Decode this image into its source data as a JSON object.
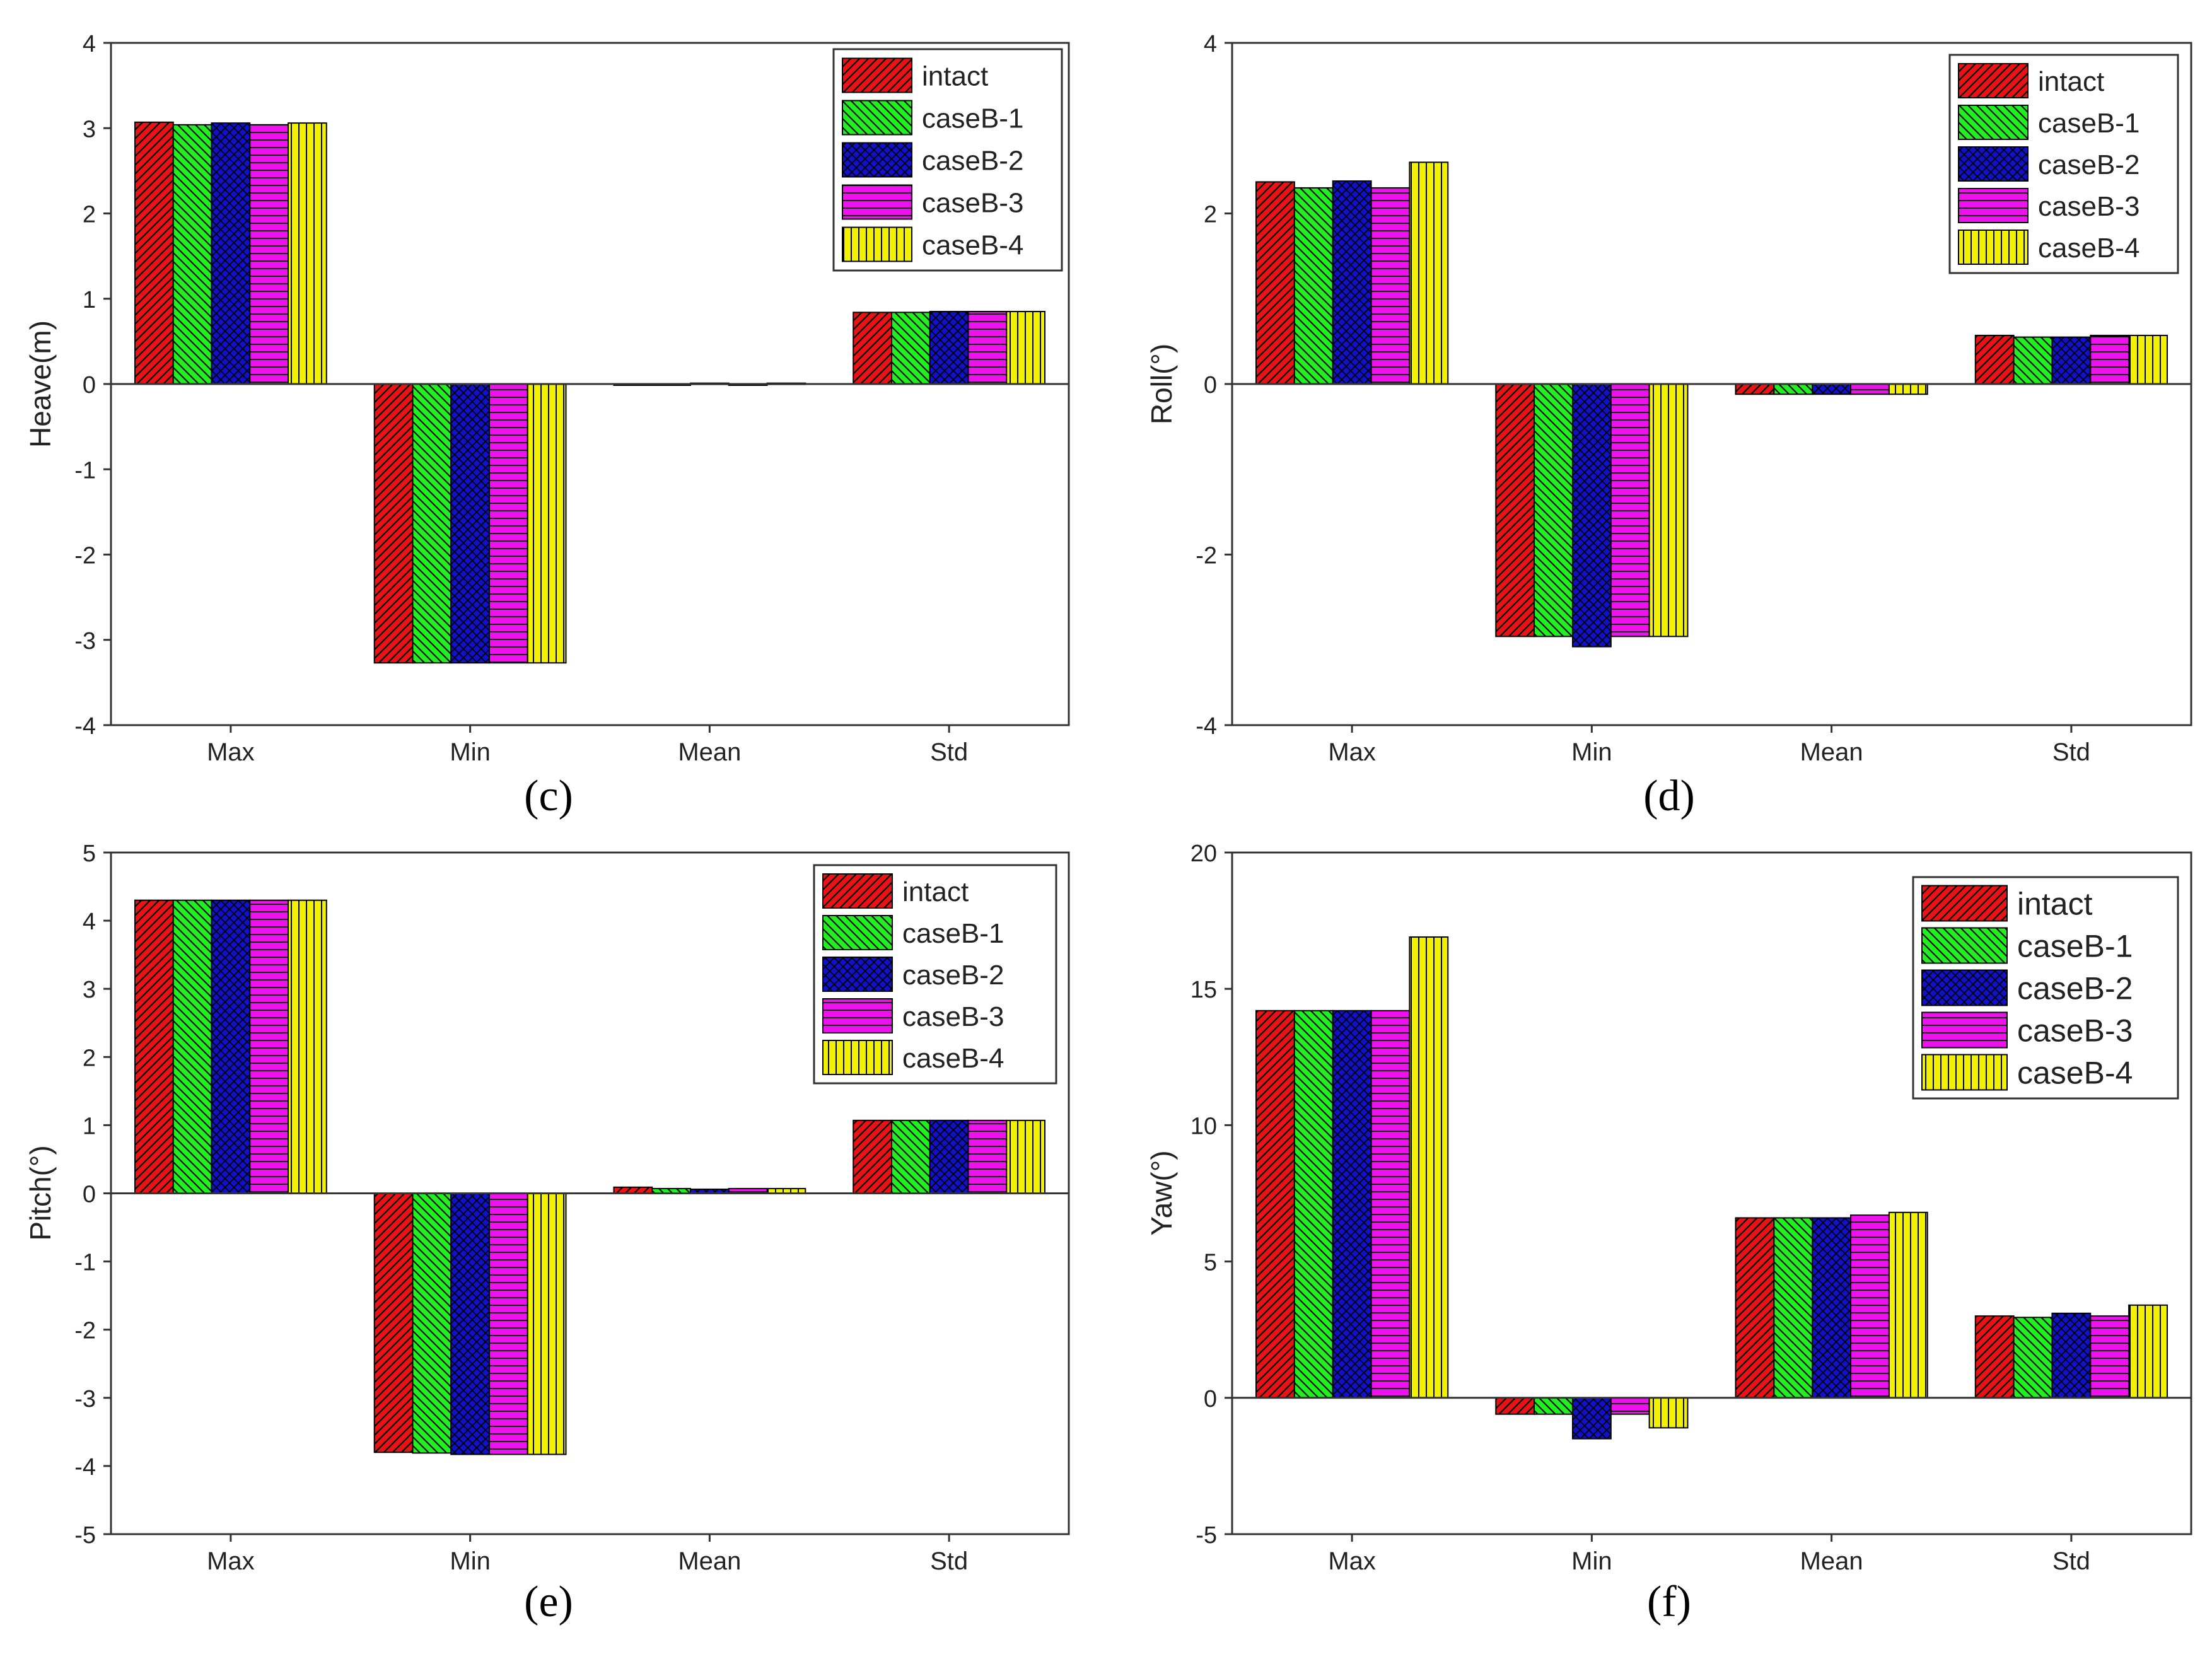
{
  "colors": {
    "intact": "#ee1111",
    "caseB-1": "#22ee22",
    "caseB-2": "#1111cc",
    "caseB-3": "#ee11ee",
    "caseB-4": "#f2f200"
  },
  "patterns": {
    "intact": "diag-right",
    "caseB-1": "diag-left",
    "caseB-2": "cross",
    "caseB-3": "horizontal",
    "caseB-4": "vertical"
  },
  "chart_data": [
    {
      "panel": "c",
      "panel_label": "(c)",
      "type": "bar",
      "title": "",
      "xlabel": "",
      "ylabel": "Heave(m)",
      "ylim": [
        -4,
        4
      ],
      "yticks": [
        -4,
        -3,
        -2,
        -1,
        0,
        1,
        2,
        3,
        4
      ],
      "ytick_labels": [
        "-4",
        "-3",
        "-2",
        "-1",
        "0",
        "1",
        "2",
        "3",
        "4"
      ],
      "categories": [
        "Max",
        "Min",
        "Mean",
        "Std"
      ],
      "legend_position": "top-right",
      "series": [
        {
          "name": "intact",
          "values": [
            3.07,
            -3.27,
            0.0,
            0.84
          ]
        },
        {
          "name": "caseB-1",
          "values": [
            3.04,
            -3.27,
            0.0,
            0.84
          ]
        },
        {
          "name": "caseB-2",
          "values": [
            3.06,
            -3.27,
            0.01,
            0.85
          ]
        },
        {
          "name": "caseB-3",
          "values": [
            3.04,
            -3.27,
            0.0,
            0.85
          ]
        },
        {
          "name": "caseB-4",
          "values": [
            3.06,
            -3.27,
            0.01,
            0.85
          ]
        }
      ]
    },
    {
      "panel": "d",
      "panel_label": "(d)",
      "type": "bar",
      "title": "",
      "xlabel": "",
      "ylabel": "Roll(°)",
      "ylim": [
        -4,
        4
      ],
      "yticks": [
        -4,
        -2,
        0,
        2,
        4
      ],
      "ytick_labels": [
        "-4",
        "-2",
        "0",
        "2",
        "4"
      ],
      "categories": [
        "Max",
        "Min",
        "Mean",
        "Std"
      ],
      "legend_position": "top-right",
      "series": [
        {
          "name": "intact",
          "values": [
            2.37,
            -2.96,
            -0.12,
            0.57
          ]
        },
        {
          "name": "caseB-1",
          "values": [
            2.3,
            -2.96,
            -0.12,
            0.55
          ]
        },
        {
          "name": "caseB-2",
          "values": [
            2.38,
            -3.08,
            -0.12,
            0.55
          ]
        },
        {
          "name": "caseB-3",
          "values": [
            2.3,
            -2.96,
            -0.12,
            0.57
          ]
        },
        {
          "name": "caseB-4",
          "values": [
            2.6,
            -2.96,
            -0.12,
            0.57
          ]
        }
      ]
    },
    {
      "panel": "e",
      "panel_label": "(e)",
      "type": "bar",
      "title": "",
      "xlabel": "",
      "ylabel": "Pitch(°)",
      "ylim": [
        -5,
        5
      ],
      "yticks": [
        -5,
        -4,
        -3,
        -2,
        -1,
        0,
        1,
        2,
        3,
        4,
        5
      ],
      "ytick_labels": [
        "-5",
        "-4",
        "-3",
        "-2",
        "-1",
        "0",
        "1",
        "2",
        "3",
        "4",
        "5"
      ],
      "categories": [
        "Max",
        "Min",
        "Mean",
        "Std"
      ],
      "legend_position": "top-right",
      "series": [
        {
          "name": "intact",
          "values": [
            4.3,
            -3.8,
            0.09,
            1.07
          ]
        },
        {
          "name": "caseB-1",
          "values": [
            4.3,
            -3.81,
            0.07,
            1.07
          ]
        },
        {
          "name": "caseB-2",
          "values": [
            4.3,
            -3.83,
            0.06,
            1.07
          ]
        },
        {
          "name": "caseB-3",
          "values": [
            4.3,
            -3.83,
            0.07,
            1.07
          ]
        },
        {
          "name": "caseB-4",
          "values": [
            4.3,
            -3.83,
            0.07,
            1.07
          ]
        }
      ]
    },
    {
      "panel": "f",
      "panel_label": "(f)",
      "type": "bar",
      "title": "",
      "xlabel": "",
      "ylabel": "Yaw(°)",
      "ylim": [
        -5,
        20
      ],
      "yticks": [
        -5,
        0,
        5,
        10,
        15,
        20
      ],
      "ytick_labels": [
        "-5",
        "0",
        "5",
        "10",
        "15",
        "20"
      ],
      "categories": [
        "Max",
        "Min",
        "Mean",
        "Std"
      ],
      "legend_position": "top-right",
      "series": [
        {
          "name": "intact",
          "values": [
            14.2,
            -0.6,
            6.6,
            3.0
          ]
        },
        {
          "name": "caseB-1",
          "values": [
            14.2,
            -0.6,
            6.6,
            2.95
          ]
        },
        {
          "name": "caseB-2",
          "values": [
            14.2,
            -1.5,
            6.6,
            3.1
          ]
        },
        {
          "name": "caseB-3",
          "values": [
            14.2,
            -0.6,
            6.7,
            3.0
          ]
        },
        {
          "name": "caseB-4",
          "values": [
            16.9,
            -1.1,
            6.8,
            3.4
          ]
        }
      ]
    }
  ]
}
